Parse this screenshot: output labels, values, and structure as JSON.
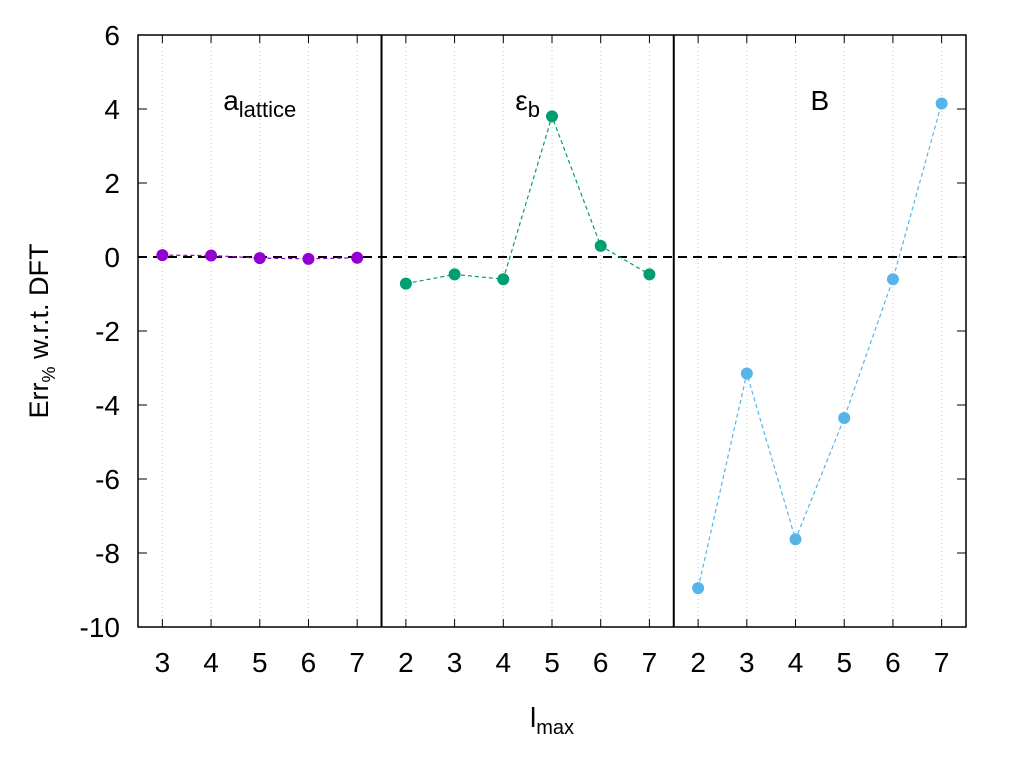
{
  "chart_data": {
    "type": "scatter",
    "ylabel_main": "Err",
    "ylabel_sub": "%",
    "ylabel_rest": " w.r.t. DFT",
    "xlabel_main": "l",
    "xlabel_sub": "max",
    "ylim": [
      -10,
      6
    ],
    "yticks": [
      -10,
      -8,
      -6,
      -4,
      -2,
      0,
      2,
      4,
      6
    ],
    "ytick_labels": [
      "-10",
      "-8",
      "-6",
      "-4",
      "-2",
      "0",
      "2",
      "4",
      "6"
    ],
    "reference_line": 0,
    "grid": "vertical-dotted",
    "panels": [
      {
        "label_main": "a",
        "label_sub": "lattice",
        "color": "#9400d3",
        "x": [
          "3",
          "4",
          "5",
          "6",
          "7"
        ],
        "values": [
          0.05,
          0.04,
          -0.03,
          -0.05,
          -0.02
        ]
      },
      {
        "label_main": "ε",
        "label_sub": "b",
        "color": "#009e73",
        "x": [
          "2",
          "3",
          "4",
          "5",
          "6",
          "7"
        ],
        "values": [
          -0.72,
          -0.47,
          -0.6,
          3.8,
          0.3,
          -0.47
        ]
      },
      {
        "label_main": "B",
        "label_sub": "",
        "color": "#56b4e9",
        "x": [
          "2",
          "3",
          "4",
          "5",
          "6",
          "7"
        ],
        "values": [
          -8.95,
          -3.15,
          -7.63,
          -4.35,
          -0.6,
          4.15
        ]
      }
    ]
  }
}
